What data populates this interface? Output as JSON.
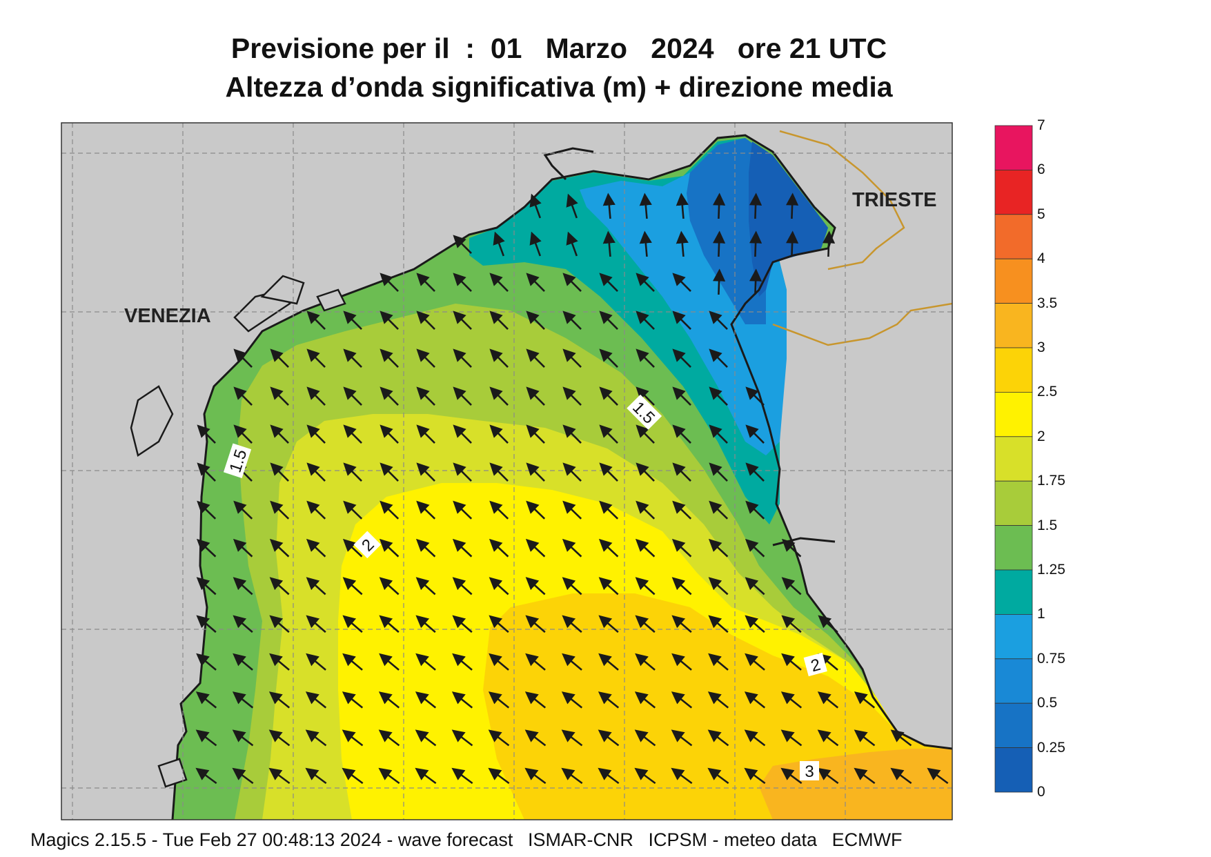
{
  "title": {
    "prefix": "Previsione per il",
    "day": "01",
    "month": "Marzo",
    "year": "2024",
    "hour": "ore 21 UTC",
    "subtitle": "Altezza d’onda significativa (m) + direzione media"
  },
  "cities": [
    {
      "name": "VENEZIA"
    },
    {
      "name": "TRIESTE"
    }
  ],
  "contour_labels": [
    "1.5",
    "1.5",
    "2",
    "2",
    "3"
  ],
  "legend": {
    "levels": [
      "7",
      "6",
      "5",
      "4",
      "3.5",
      "3",
      "2.5",
      "2",
      "1.75",
      "1.5",
      "1.25",
      "1",
      "0.75",
      "0.5",
      "0.25",
      "0"
    ],
    "colors": [
      "#e8155f",
      "#e82424",
      "#f26b2a",
      "#f7901f",
      "#f9b51f",
      "#fcd307",
      "#fff200",
      "#d8e029",
      "#a8cc3a",
      "#6cbd52",
      "#00aaa0",
      "#1b9fe0",
      "#1989d6",
      "#1773c5",
      "#155fb5"
    ]
  },
  "colors": {
    "land": "#c9c9c9",
    "coast": "#1a1a1a",
    "border": "#c8962d",
    "grid": "#8a8a8a",
    "arrow": "#1a1a1a"
  },
  "footer": {
    "software": "Magics 2.15.5 - Tue Feb 27 00:48:13 2024 - wave forecast",
    "org": "ISMAR-CNR",
    "institute": "ICPSM - meteo data",
    "source": "ECMWF"
  }
}
